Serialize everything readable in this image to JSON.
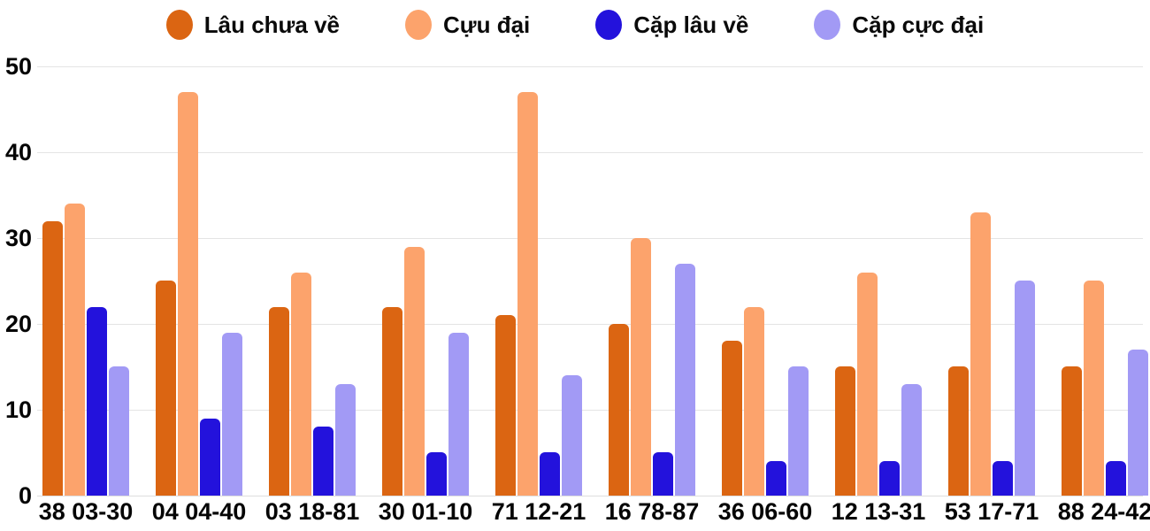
{
  "chart_data": {
    "type": "bar",
    "title": "",
    "legend_position": "top",
    "grid": "horizontal",
    "background_color": "#ffffff",
    "gridline_color": "#e4e4e4",
    "text_color": "#050505",
    "ylim": [
      0,
      50
    ],
    "yticks": [
      "0",
      "10",
      "20",
      "30",
      "40",
      "50"
    ],
    "categories": [
      "38 03-30",
      "04 04-40",
      "03 18-81",
      "30 01-10",
      "71 12-21",
      "16 78-87",
      "36 06-60",
      "12 13-31",
      "53 17-71",
      "88 24-42"
    ],
    "series": [
      {
        "name": "Lâu chưa về",
        "color": "#db6512",
        "values": [
          32,
          25,
          22,
          22,
          21,
          20,
          18,
          15,
          15,
          15
        ]
      },
      {
        "name": "Cựu đại",
        "color": "#fca36c",
        "values": [
          34,
          47,
          26,
          29,
          47,
          30,
          22,
          26,
          33,
          25
        ]
      },
      {
        "name": "Cặp lâu về",
        "color": "#2312dc",
        "values": [
          22,
          9,
          8,
          5,
          5,
          5,
          4,
          4,
          4,
          4
        ]
      },
      {
        "name": "Cặp cực đại",
        "color": "#a29af5",
        "values": [
          15,
          19,
          13,
          19,
          14,
          27,
          15,
          13,
          25,
          17
        ]
      }
    ]
  }
}
